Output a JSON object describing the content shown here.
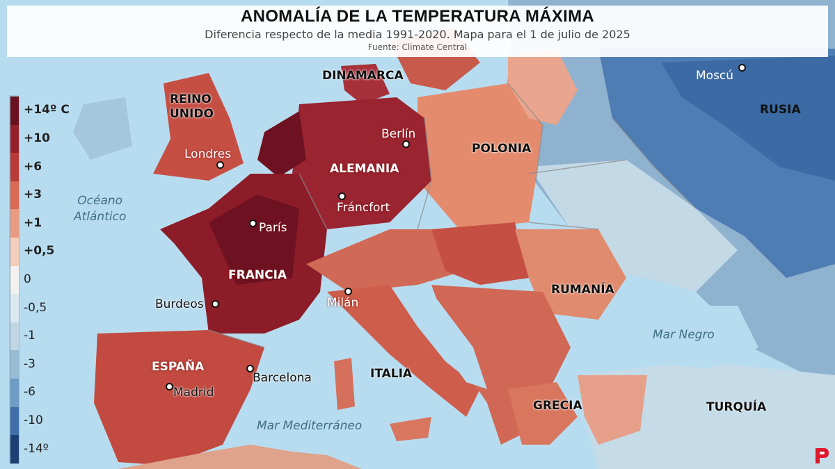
{
  "header": {
    "title": "ANOMALÍA DE LA TEMPERATURA MÁXIMA",
    "subtitle": "Diferencia respecto de la media 1991-2020. Mapa para el 1 de julio de 2025",
    "source": "Fuente: Climate Central"
  },
  "legend": {
    "labels": [
      "+14º C",
      "+10",
      "+6",
      "+3",
      "+1",
      "+0,5",
      "0",
      "-0,5",
      "-1",
      "-3",
      "-6",
      "-10",
      "-14º"
    ],
    "colors": [
      "#6b1020",
      "#94202a",
      "#b93a36",
      "#d96a54",
      "#e99b82",
      "#f5cdbc",
      "#f4f2f0",
      "#dce8ef",
      "#c0d6e3",
      "#98bcd5",
      "#6f9cc5",
      "#3f6ea8",
      "#1e3f73"
    ]
  },
  "countries": {
    "reino_unido": "REINO\nUNIDO",
    "dinamarca": "DINAMARCA",
    "alemania": "ALEMANIA",
    "polonia": "POLONIA",
    "rusia": "RUSIA",
    "francia": "FRANCIA",
    "rumania": "RUMANÍA",
    "espana": "ESPAÑA",
    "italia": "ITALIA",
    "grecia": "GRECIA",
    "turquia": "TURQUÍA"
  },
  "cities": {
    "londres": "Londres",
    "berlin": "Berlín",
    "moscu": "Moscú",
    "francfort": "Fráncfort",
    "paris": "París",
    "burdeos": "Burdeos",
    "milan": "Milán",
    "barcelona": "Barcelona",
    "madrid": "Madrid"
  },
  "waters": {
    "atlantico": "Océano\nAtlántico",
    "mar_negro": "Mar Negro",
    "mediterraneo": "Mar Mediterráneo"
  }
}
